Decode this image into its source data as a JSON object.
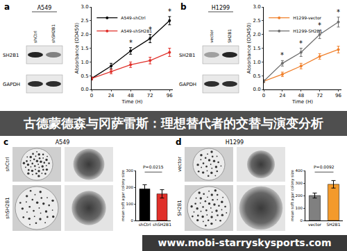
{
  "banner": "古德蒙德森与冈萨雷斯：理想替代者的交替与演变分析",
  "watermark": "www.mobi-starryskysports.com",
  "panels": [
    {
      "label": "a",
      "blot": {
        "title": "A549",
        "lanes": [
          "shCtrl",
          "shSH2B1"
        ],
        "rows": [
          "SH2B1",
          "GAPDH"
        ]
      }
    },
    {
      "label": "b",
      "blot": {
        "title": "H1299",
        "lanes": [
          "vector",
          "SH2B1"
        ],
        "rows": [
          "SH2B1",
          "GAPDH"
        ]
      }
    },
    {
      "label": "c",
      "title": "A549",
      "rows": [
        "shCtrl",
        "shSH2B1"
      ]
    },
    {
      "label": "d",
      "title": "H1299",
      "rows": [
        "vector",
        "SH2B1"
      ]
    }
  ],
  "chart_data": [
    {
      "type": "line",
      "x": [
        0,
        24,
        48,
        72,
        96
      ],
      "series": [
        {
          "name": "A549-shCtrl",
          "color": "#000000",
          "values": [
            0.4,
            0.85,
            1.4,
            1.85,
            2.5
          ],
          "errors": [
            0.05,
            0.1,
            0.12,
            0.15,
            0.15
          ]
        },
        {
          "name": "A549-shSH2B1",
          "color": "#e0302a",
          "values": [
            0.4,
            0.65,
            0.9,
            1.05,
            1.35
          ],
          "errors": [
            0.05,
            0.08,
            0.1,
            0.12,
            0.15
          ]
        }
      ],
      "x_label": "Time (H)",
      "y_label": "Absorbance (OD450)",
      "xlim": [
        0,
        100
      ],
      "xticks": [
        0,
        24,
        48,
        72,
        96
      ],
      "ylim": [
        0,
        3
      ],
      "yticks": [
        {
          "value": 0,
          "label": "0.0"
        },
        0.5,
        {
          "value": 1,
          "label": "1.0"
        },
        1.5,
        {
          "value": 2,
          "label": "2.0"
        },
        2.5,
        {
          "value": 3,
          "label": "3.0"
        }
      ],
      "legend": "upper left",
      "marker": "circle",
      "grid": false,
      "annotations": [
        {
          "x": 48,
          "text": "*"
        },
        {
          "x": 72,
          "text": "*"
        },
        {
          "x": 96,
          "text": "*"
        }
      ]
    },
    {
      "type": "line",
      "x": [
        0,
        24,
        48,
        72,
        96
      ],
      "series": [
        {
          "name": "H1299-vector",
          "color": "#f07f2a",
          "values": [
            0.3,
            0.55,
            0.85,
            1.2,
            1.45
          ],
          "errors": [
            0.05,
            0.08,
            0.1,
            0.1,
            0.12
          ]
        },
        {
          "name": "H1299-SH2B1",
          "color": "#6e6e6e",
          "values": [
            0.3,
            0.95,
            1.35,
            2.0,
            2.45
          ],
          "errors": [
            0.05,
            0.1,
            0.15,
            0.15,
            0.18
          ]
        }
      ],
      "x_label": "Time (H)",
      "y_label": "Absorbance (OD450)",
      "xlim": [
        0,
        100
      ],
      "xticks": [
        0,
        24,
        48,
        72,
        96
      ],
      "ylim": [
        0,
        3
      ],
      "yticks": [
        {
          "value": 0,
          "label": "0.0"
        },
        0.5,
        {
          "value": 1,
          "label": "1.0"
        },
        1.5,
        {
          "value": 2,
          "label": "2.0"
        },
        2.5,
        {
          "value": 3,
          "label": "3.0"
        }
      ],
      "legend": "upper left",
      "marker": "circle",
      "grid": false,
      "annotations": [
        {
          "x": 24,
          "text": "*"
        },
        {
          "x": 48,
          "text": "*"
        },
        {
          "x": 72,
          "text": "*"
        },
        {
          "x": 96,
          "text": "*"
        }
      ]
    },
    {
      "type": "bar",
      "categories": [
        "shCtrl",
        "shSH2B1"
      ],
      "values": [
        190,
        160
      ],
      "errors": [
        25,
        25
      ],
      "colors": [
        "#000000",
        "#e0302a"
      ],
      "y_label": "mean soft agar colony size",
      "ylim": [
        0,
        300
      ],
      "yticks": [
        0,
        100,
        200,
        300
      ],
      "grid": false,
      "annotations": [
        {
          "text": "P=0.0215"
        }
      ]
    },
    {
      "type": "bar",
      "categories": [
        "vector",
        "SH2B1"
      ],
      "values": [
        200,
        290
      ],
      "errors": [
        20,
        30
      ],
      "colors": [
        "#808080",
        "#f39a2b"
      ],
      "y_label": "mean soft agar colony size",
      "ylim": [
        0,
        400
      ],
      "yticks": [
        0,
        100,
        200,
        300,
        400
      ],
      "grid": false,
      "annotations": [
        {
          "text": "P=0.0092"
        }
      ]
    }
  ]
}
